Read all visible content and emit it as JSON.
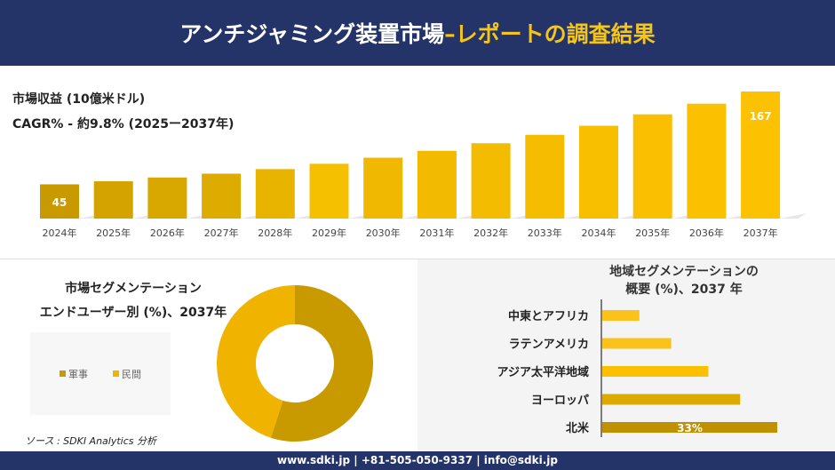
{
  "header": {
    "title": "アンチジャミング装置市場 ",
    "title_accent": "–レポートの調査結果"
  },
  "revenue": {
    "title": "市場収益 (10億米ドル)",
    "cagr": "CAGR% - 約9.8% (2025ー2037年)"
  },
  "segmentation": {
    "title_line1": "市場セグメンテーション",
    "title_line2": "エンドユーザー別 (%)、2037年",
    "source": "ソース : SDKI Analytics 分析"
  },
  "region": {
    "title_line1": "地域セグメンテーションの",
    "title_line2": "概要 (%)、2037 年"
  },
  "footer": {
    "text": "www.sdki.jp | +81-505-050-9337 | info@sdki.jp"
  },
  "chart_data": [
    {
      "type": "bar",
      "title": "市場収益 (10億米ドル)",
      "categories": [
        "2024年",
        "2025年",
        "2026年",
        "2027年",
        "2028年",
        "2029年",
        "2030年",
        "2031年",
        "2032年",
        "2033年",
        "2034年",
        "2035年",
        "2036年",
        "2037年"
      ],
      "values": [
        45,
        49,
        54,
        59,
        65,
        72,
        80,
        89,
        99,
        110,
        122,
        137,
        151,
        167
      ],
      "data_labels": {
        "0": "45",
        "13": "167"
      },
      "colors": [
        "#c99a00",
        "#d4a300",
        "#d9a800",
        "#deac00",
        "#e8b400",
        "#f5c000",
        "#f0b800",
        "#f2ba00",
        "#f4bc00",
        "#f6bd00",
        "#f8be00",
        "#f9bf00",
        "#fbc000",
        "#fcc100"
      ],
      "ylim": [
        0,
        170
      ]
    },
    {
      "type": "pie",
      "title": "エンドユーザー別 (%)、2037年",
      "labels": [
        "軍事",
        "民間"
      ],
      "values": [
        55,
        45
      ],
      "colors": [
        "#c99a00",
        "#f0b400"
      ],
      "legend": "left"
    },
    {
      "type": "bar",
      "orientation": "horizontal",
      "title": "地域セグメンテーションの概要 (%)、2037 年",
      "categories": [
        "中東とアフリカ",
        "ラテンアメリカ",
        "アジア太平洋地域",
        "ヨーロッパ",
        "北米"
      ],
      "values": [
        7,
        13,
        20,
        26,
        33
      ],
      "data_labels": {
        "4": "33%"
      },
      "colors": [
        "#fcc21c",
        "#fcc21c",
        "#fcc000",
        "#dcaa00",
        "#bf9000"
      ],
      "xlim": [
        0,
        33
      ]
    }
  ]
}
